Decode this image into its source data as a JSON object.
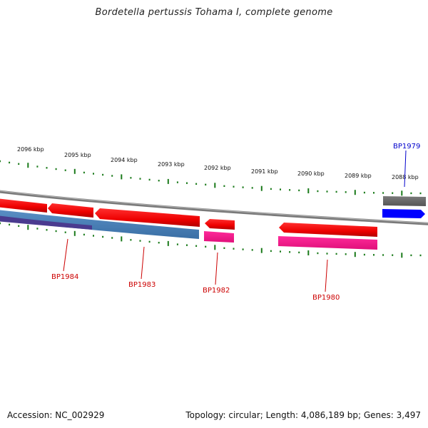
{
  "title": "Bordetella pertussis Tohama I, complete genome",
  "footer": {
    "accession": "Accession: NC_002929",
    "summary": "Topology: circular; Length: 4,086,189 bp; Genes: 3,497"
  },
  "scale": {
    "unit": "kbp",
    "labels": [
      "2096 kbp",
      "2095 kbp",
      "2094 kbp",
      "2093 kbp",
      "2092 kbp",
      "2091 kbp",
      "2090 kbp",
      "2089 kbp",
      "2088 kbp"
    ]
  },
  "genes": [
    {
      "label": "BP1984",
      "color": "#cc0000"
    },
    {
      "label": "BP1983",
      "color": "#cc0000"
    },
    {
      "label": "BP1982",
      "color": "#cc0000"
    },
    {
      "label": "BP1980",
      "color": "#cc0000"
    },
    {
      "label": "BP1979",
      "color": "#0000cc"
    }
  ],
  "colors": {
    "cds": "#ff0000",
    "blast_blue": "#4a7fb5",
    "blast_purple": "#4a3b8f",
    "magenta": "#ff1493",
    "gray": "#707070",
    "blue": "#0000ff",
    "tick": "#1a7a1a",
    "backbone": "#888888"
  }
}
